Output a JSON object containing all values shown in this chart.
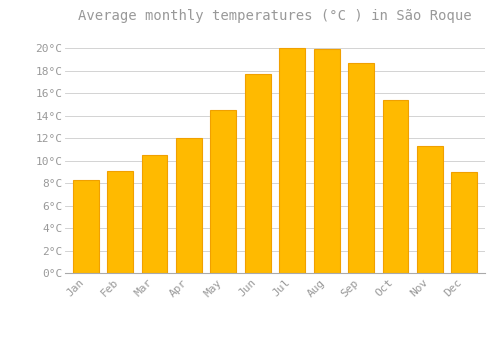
{
  "title": "Average monthly temperatures (°C ) in São Roque",
  "months": [
    "Jan",
    "Feb",
    "Mar",
    "Apr",
    "May",
    "Jun",
    "Jul",
    "Aug",
    "Sep",
    "Oct",
    "Nov",
    "Dec"
  ],
  "values": [
    8.3,
    9.1,
    10.5,
    12.0,
    14.5,
    17.7,
    20.0,
    19.9,
    18.7,
    15.4,
    11.3,
    9.0
  ],
  "bar_color": "#FFBA00",
  "bar_edge_color": "#F0A000",
  "background_color": "#FFFFFF",
  "plot_bg_color": "#FFFFFF",
  "grid_color": "#CCCCCC",
  "ytick_labels": [
    "0°C",
    "2°C",
    "4°C",
    "6°C",
    "8°C",
    "10°C",
    "12°C",
    "14°C",
    "16°C",
    "18°C",
    "20°C"
  ],
  "ytick_values": [
    0,
    2,
    4,
    6,
    8,
    10,
    12,
    14,
    16,
    18,
    20
  ],
  "ylim": [
    0,
    21.5
  ],
  "title_fontsize": 10,
  "tick_fontsize": 8,
  "font_color": "#999999",
  "spine_color": "#AAAAAA",
  "bar_width": 0.75
}
